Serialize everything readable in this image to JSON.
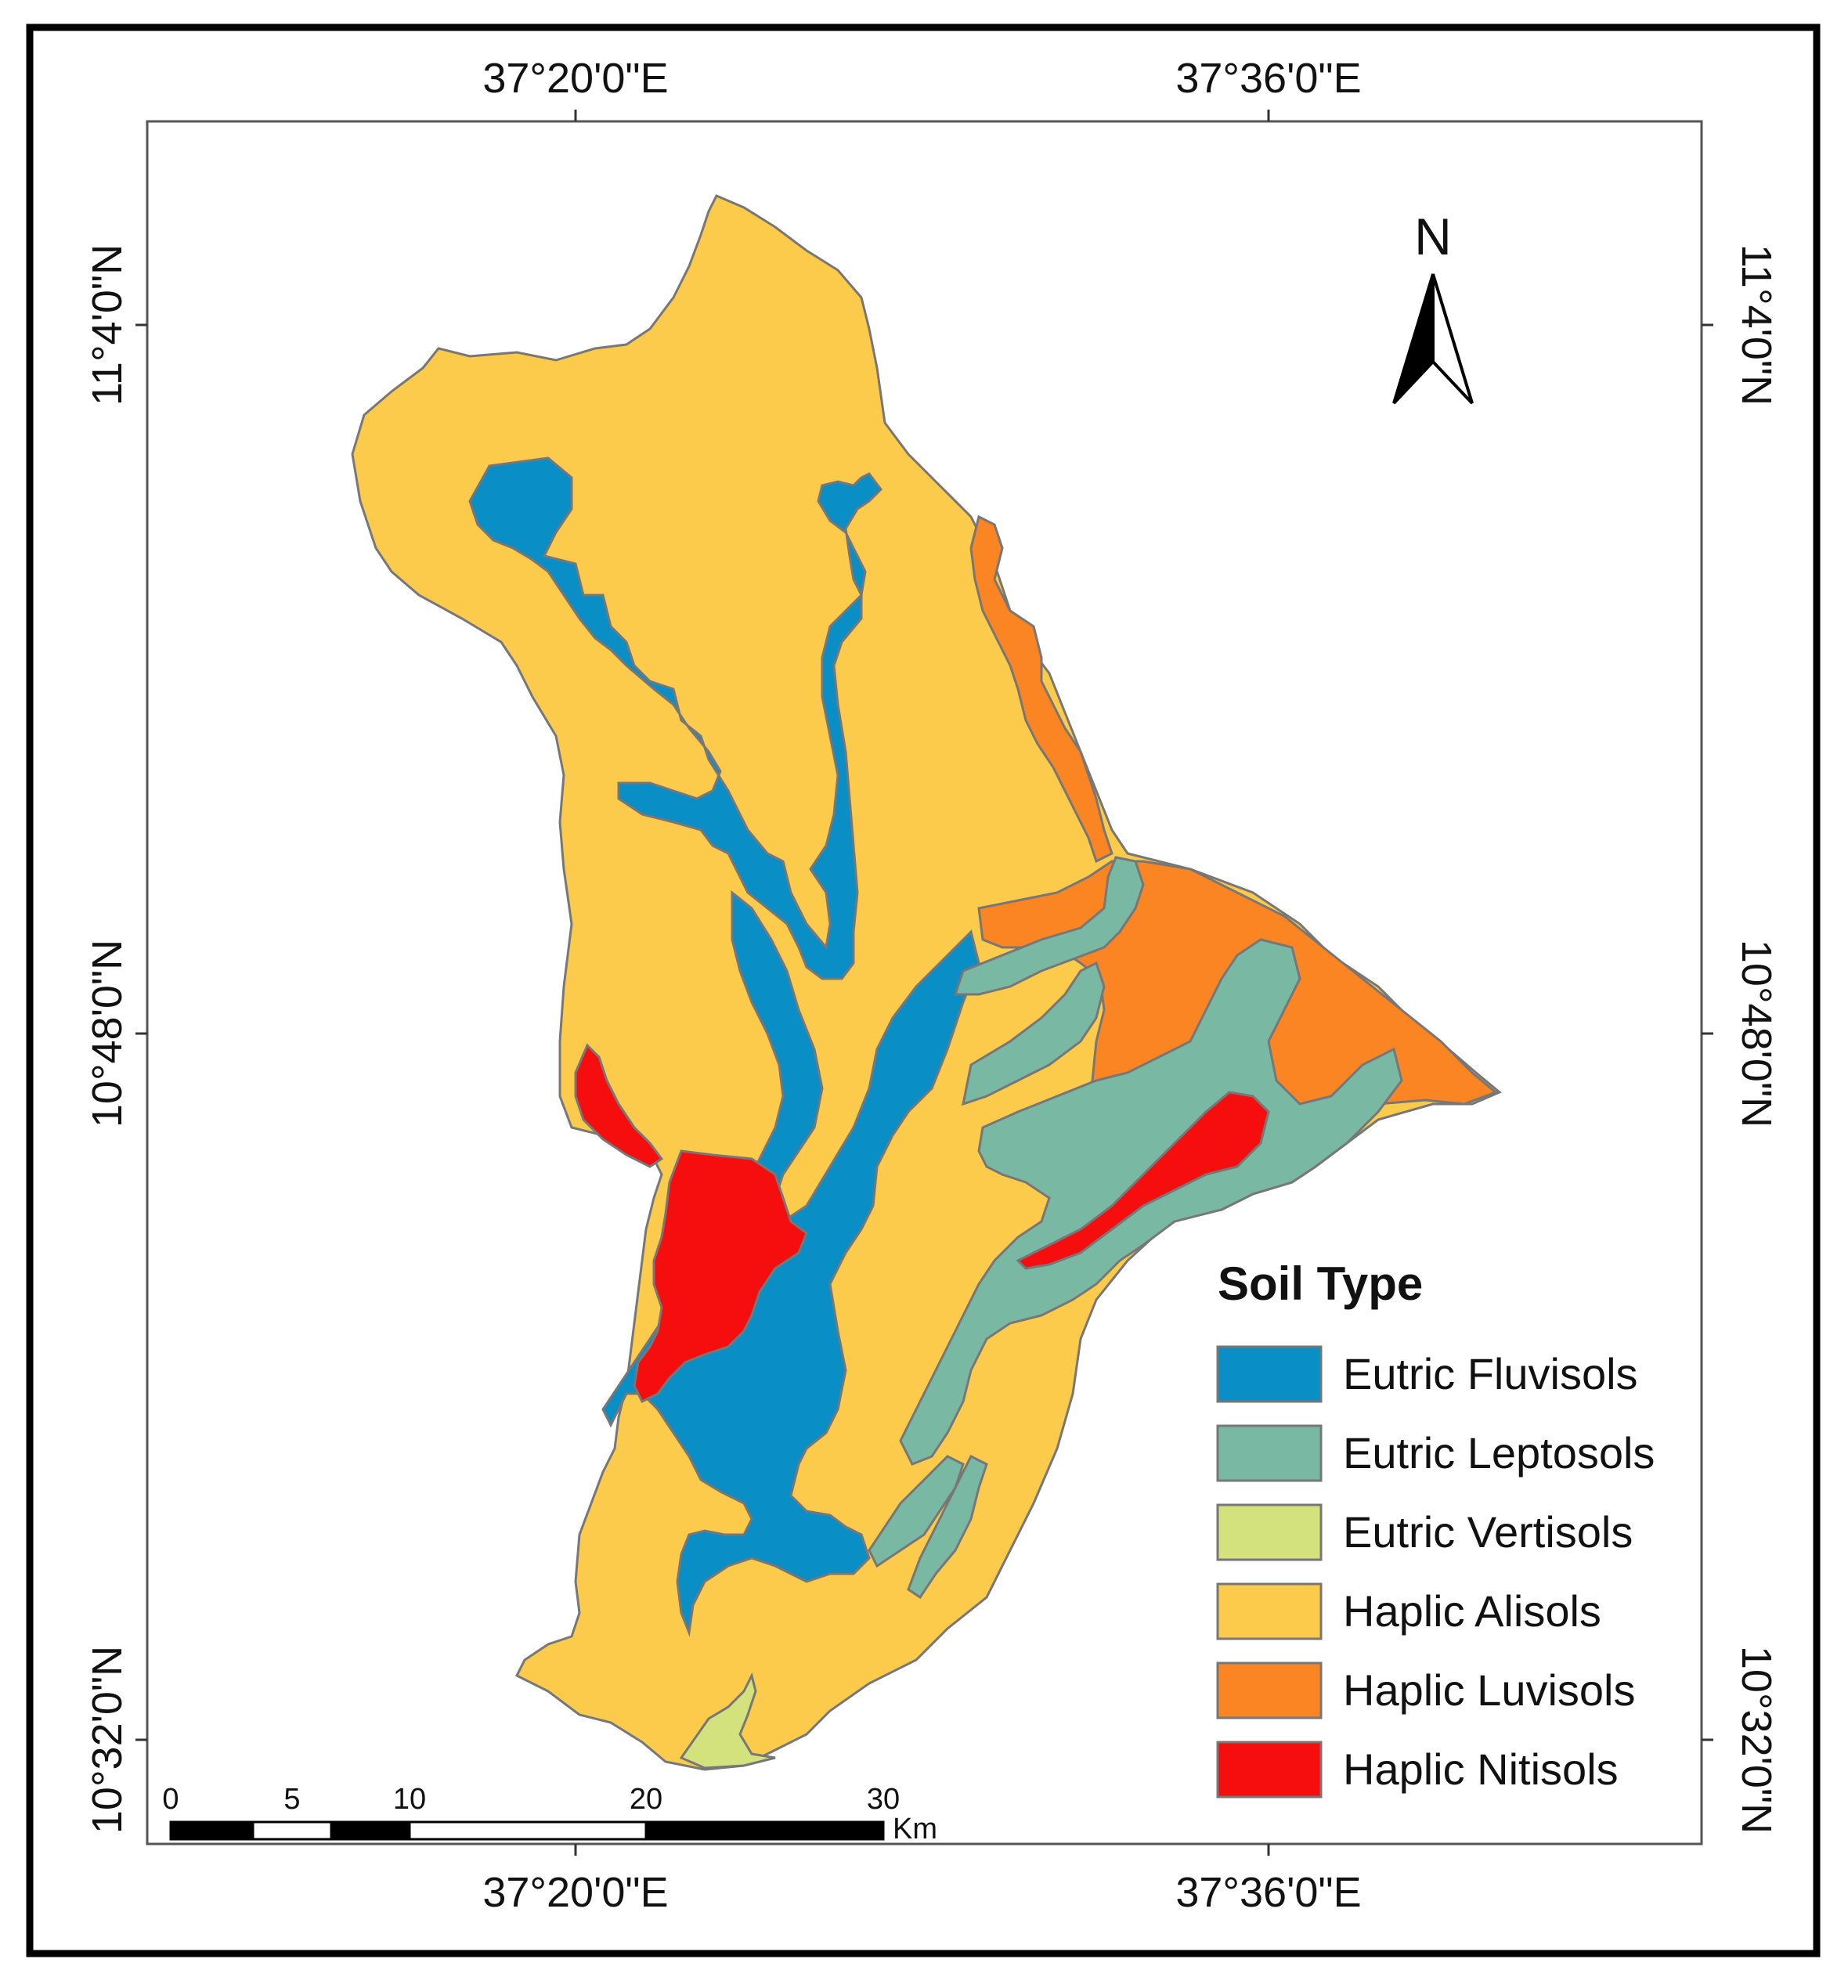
{
  "map": {
    "graticule": {
      "longitudes": [
        "37°20'0\"E",
        "37°36'0\"E"
      ],
      "latitudes": [
        "11°4'0\"N",
        "10°48'0\"N",
        "10°32'0\"N"
      ]
    },
    "north_arrow": {
      "label": "N"
    },
    "scale_bar": {
      "ticks": [
        "0",
        "5",
        "10",
        "20",
        "30"
      ],
      "unit": "Km"
    },
    "legend": {
      "title": "Soil Type",
      "items": [
        {
          "label": "Eutric Fluvisols",
          "color": "#0a8ec6"
        },
        {
          "label": "Eutric Leptosols",
          "color": "#79b9a4"
        },
        {
          "label": "Eutric Vertisols",
          "color": "#d3e27c"
        },
        {
          "label": "Haplic Alisols",
          "color": "#fdcb4b"
        },
        {
          "label": "Haplic Luvisols",
          "color": "#fb8423"
        },
        {
          "label": "Haplic Nitisols",
          "color": "#f60d0d"
        }
      ]
    }
  }
}
